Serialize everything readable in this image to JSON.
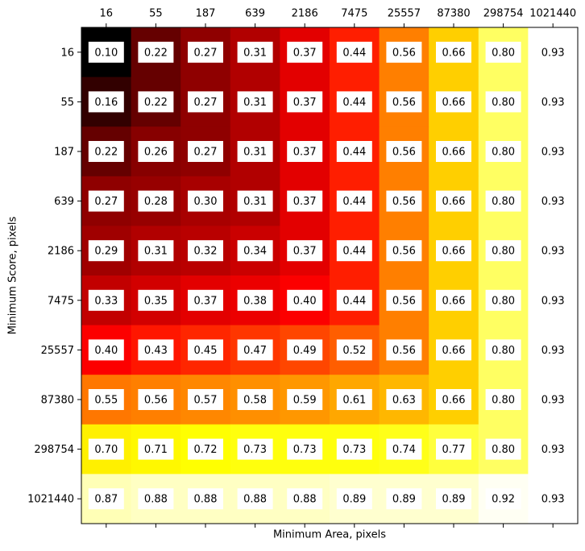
{
  "chart_data": {
    "type": "heatmap",
    "colormap": "hot",
    "x_label": "Minimum Area, pixels",
    "y_label": "Minimum Score, pixels",
    "x_categories": [
      "16",
      "55",
      "187",
      "639",
      "2186",
      "7475",
      "25557",
      "87380",
      "298754",
      "1021440"
    ],
    "y_categories": [
      "16",
      "55",
      "187",
      "639",
      "2186",
      "7475",
      "25557",
      "87380",
      "298754",
      "1021440"
    ],
    "values": [
      [
        0.1,
        0.22,
        0.27,
        0.31,
        0.37,
        0.44,
        0.56,
        0.66,
        0.8,
        0.93
      ],
      [
        0.16,
        0.22,
        0.27,
        0.31,
        0.37,
        0.44,
        0.56,
        0.66,
        0.8,
        0.93
      ],
      [
        0.22,
        0.26,
        0.27,
        0.31,
        0.37,
        0.44,
        0.56,
        0.66,
        0.8,
        0.93
      ],
      [
        0.27,
        0.28,
        0.3,
        0.31,
        0.37,
        0.44,
        0.56,
        0.66,
        0.8,
        0.93
      ],
      [
        0.29,
        0.31,
        0.32,
        0.34,
        0.37,
        0.44,
        0.56,
        0.66,
        0.8,
        0.93
      ],
      [
        0.33,
        0.35,
        0.37,
        0.38,
        0.4,
        0.44,
        0.56,
        0.66,
        0.8,
        0.93
      ],
      [
        0.4,
        0.43,
        0.45,
        0.47,
        0.49,
        0.52,
        0.56,
        0.66,
        0.8,
        0.93
      ],
      [
        0.55,
        0.56,
        0.57,
        0.58,
        0.59,
        0.61,
        0.63,
        0.66,
        0.8,
        0.93
      ],
      [
        0.7,
        0.71,
        0.72,
        0.73,
        0.73,
        0.73,
        0.74,
        0.77,
        0.8,
        0.93
      ],
      [
        0.87,
        0.88,
        0.88,
        0.88,
        0.88,
        0.89,
        0.89,
        0.89,
        0.92,
        0.93
      ]
    ],
    "value_labels": [
      [
        "0.10",
        "0.22",
        "0.27",
        "0.31",
        "0.37",
        "0.44",
        "0.56",
        "0.66",
        "0.80",
        "0.93"
      ],
      [
        "0.16",
        "0.22",
        "0.27",
        "0.31",
        "0.37",
        "0.44",
        "0.56",
        "0.66",
        "0.80",
        "0.93"
      ],
      [
        "0.22",
        "0.26",
        "0.27",
        "0.31",
        "0.37",
        "0.44",
        "0.56",
        "0.66",
        "0.80",
        "0.93"
      ],
      [
        "0.27",
        "0.28",
        "0.30",
        "0.31",
        "0.37",
        "0.44",
        "0.56",
        "0.66",
        "0.80",
        "0.93"
      ],
      [
        "0.29",
        "0.31",
        "0.32",
        "0.34",
        "0.37",
        "0.44",
        "0.56",
        "0.66",
        "0.80",
        "0.93"
      ],
      [
        "0.33",
        "0.35",
        "0.37",
        "0.38",
        "0.40",
        "0.44",
        "0.56",
        "0.66",
        "0.80",
        "0.93"
      ],
      [
        "0.40",
        "0.43",
        "0.45",
        "0.47",
        "0.49",
        "0.52",
        "0.56",
        "0.66",
        "0.80",
        "0.93"
      ],
      [
        "0.55",
        "0.56",
        "0.57",
        "0.58",
        "0.59",
        "0.61",
        "0.63",
        "0.66",
        "0.80",
        "0.93"
      ],
      [
        "0.70",
        "0.71",
        "0.72",
        "0.73",
        "0.73",
        "0.73",
        "0.74",
        "0.77",
        "0.80",
        "0.93"
      ],
      [
        "0.87",
        "0.88",
        "0.88",
        "0.88",
        "0.88",
        "0.89",
        "0.89",
        "0.89",
        "0.92",
        "0.93"
      ]
    ]
  }
}
